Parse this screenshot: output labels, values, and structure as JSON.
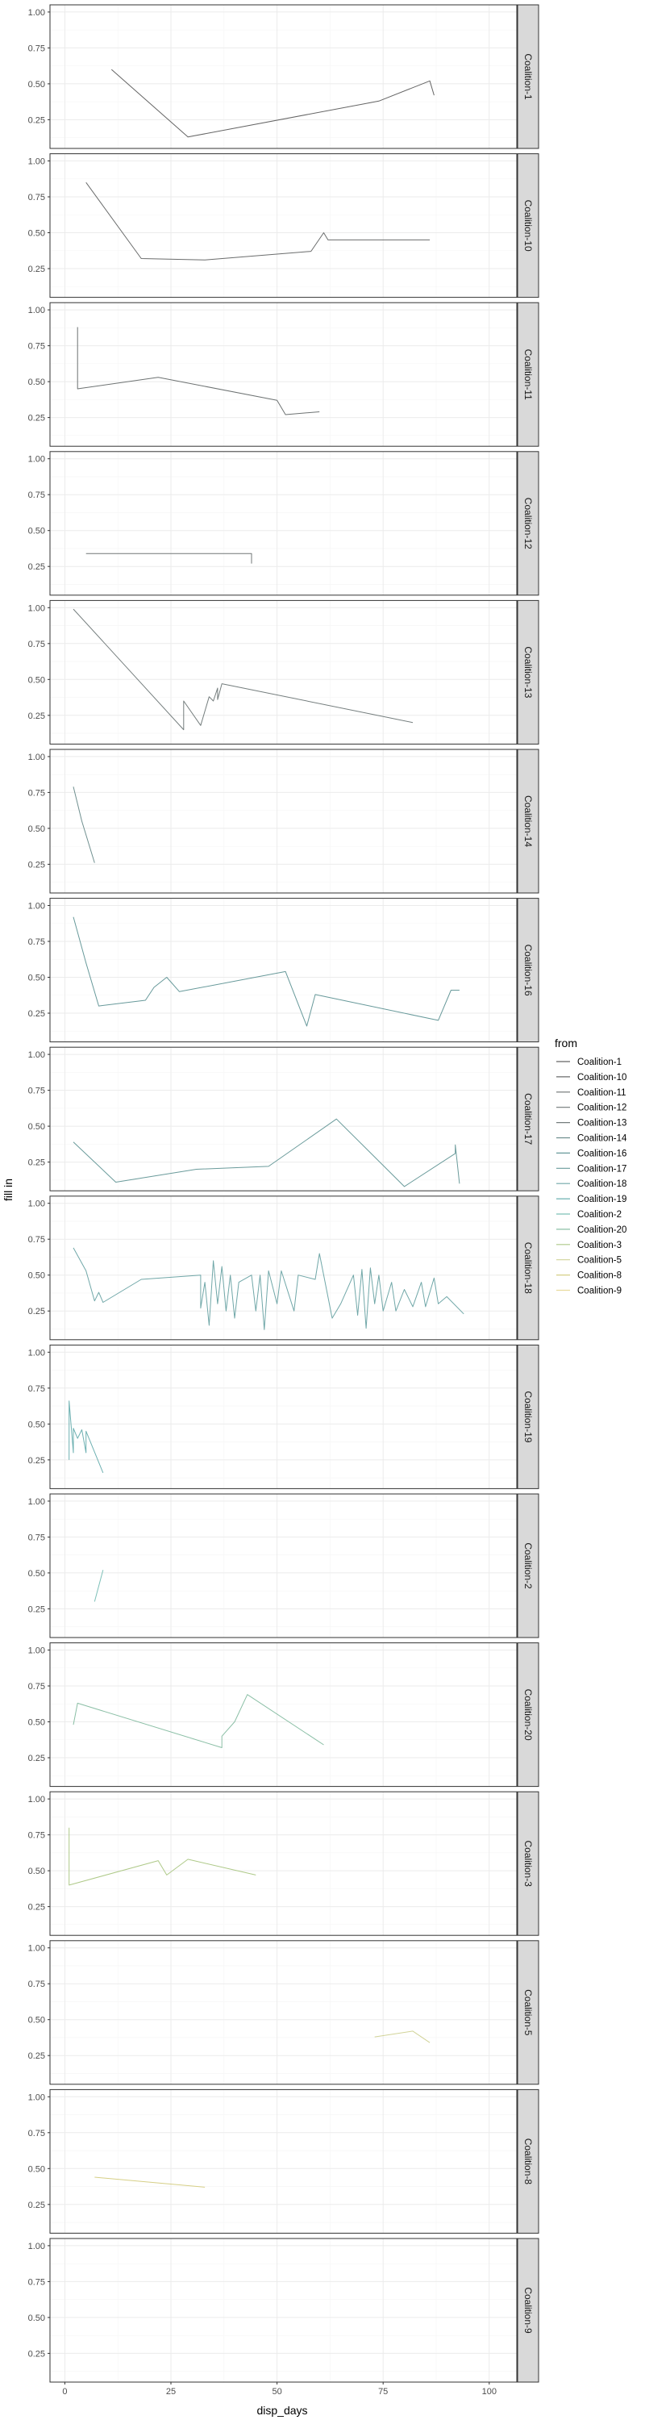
{
  "chart_data": {
    "type": "line",
    "xlabel": "disp_days",
    "ylabel": "fill in",
    "xlim": [
      -3.5,
      106.5
    ],
    "ylim": [
      0.05,
      1.05
    ],
    "x_ticks": [
      0,
      25,
      50,
      75,
      100
    ],
    "y_ticks": [
      0.25,
      0.5,
      0.75,
      1.0
    ],
    "y_tick_labels": [
      "0.25",
      "0.50",
      "0.75",
      "1.00"
    ],
    "facets": "rows by from, strip on right",
    "grid": true,
    "legend_title": "from",
    "legend_position": "right",
    "series": [
      {
        "name": "Coalition-1",
        "color": "#646464",
        "points": [
          [
            11,
            0.6
          ],
          [
            29,
            0.13
          ],
          [
            74,
            0.38
          ],
          [
            86,
            0.52
          ],
          [
            87,
            0.42
          ]
        ]
      },
      {
        "name": "Coalition-10",
        "color": "#6a6c6c",
        "points": [
          [
            5,
            0.85
          ],
          [
            18,
            0.32
          ],
          [
            33,
            0.31
          ],
          [
            58,
            0.37
          ],
          [
            61,
            0.5
          ],
          [
            62,
            0.45
          ],
          [
            64,
            0.45
          ],
          [
            74,
            0.45
          ],
          [
            86,
            0.45
          ]
        ]
      },
      {
        "name": "Coalition-11",
        "color": "#6d7272",
        "points": [
          [
            3,
            0.88
          ],
          [
            3,
            0.45
          ],
          [
            22,
            0.53
          ],
          [
            50,
            0.37
          ],
          [
            52,
            0.27
          ],
          [
            60,
            0.29
          ]
        ]
      },
      {
        "name": "Coalition-12",
        "color": "#707777",
        "points": [
          [
            5,
            0.34
          ],
          [
            44,
            0.34
          ],
          [
            44,
            0.27
          ]
        ]
      },
      {
        "name": "Coalition-13",
        "color": "#747d7d",
        "points": [
          [
            2,
            0.99
          ],
          [
            28,
            0.15
          ],
          [
            28,
            0.35
          ],
          [
            32,
            0.18
          ],
          [
            34,
            0.38
          ],
          [
            35,
            0.35
          ],
          [
            36,
            0.44
          ],
          [
            36,
            0.36
          ],
          [
            37,
            0.47
          ],
          [
            82,
            0.2
          ]
        ]
      },
      {
        "name": "Coalition-14",
        "color": "#6f8f8f",
        "points": [
          [
            2,
            0.79
          ],
          [
            4,
            0.55
          ],
          [
            7,
            0.26
          ]
        ]
      },
      {
        "name": "Coalition-16",
        "color": "#67999a",
        "points": [
          [
            2,
            0.92
          ],
          [
            5,
            0.6
          ],
          [
            8,
            0.3
          ],
          [
            19,
            0.34
          ],
          [
            21,
            0.43
          ],
          [
            24,
            0.5
          ],
          [
            27,
            0.4
          ],
          [
            52,
            0.54
          ],
          [
            57,
            0.16
          ],
          [
            59,
            0.38
          ],
          [
            88,
            0.2
          ],
          [
            91,
            0.41
          ],
          [
            93,
            0.41
          ]
        ]
      },
      {
        "name": "Coalition-17",
        "color": "#6a9b9b",
        "points": [
          [
            2,
            0.39
          ],
          [
            12,
            0.11
          ],
          [
            31,
            0.2
          ],
          [
            48,
            0.22
          ],
          [
            64,
            0.55
          ],
          [
            80,
            0.08
          ],
          [
            92,
            0.31
          ],
          [
            92,
            0.37
          ],
          [
            93,
            0.1
          ]
        ]
      },
      {
        "name": "Coalition-18",
        "color": "#70a7a8",
        "points": [
          [
            2,
            0.69
          ],
          [
            5,
            0.53
          ],
          [
            7,
            0.32
          ],
          [
            8,
            0.38
          ],
          [
            9,
            0.31
          ],
          [
            18,
            0.47
          ],
          [
            32,
            0.5
          ],
          [
            32,
            0.27
          ],
          [
            33,
            0.45
          ],
          [
            34,
            0.15
          ],
          [
            35,
            0.6
          ],
          [
            36,
            0.3
          ],
          [
            37,
            0.56
          ],
          [
            38,
            0.25
          ],
          [
            39,
            0.5
          ],
          [
            40,
            0.2
          ],
          [
            41,
            0.45
          ],
          [
            44,
            0.5
          ],
          [
            45,
            0.25
          ],
          [
            46,
            0.5
          ],
          [
            47,
            0.12
          ],
          [
            48,
            0.53
          ],
          [
            50,
            0.3
          ],
          [
            51,
            0.53
          ],
          [
            54,
            0.25
          ],
          [
            55,
            0.5
          ],
          [
            59,
            0.47
          ],
          [
            60,
            0.65
          ],
          [
            63,
            0.2
          ],
          [
            65,
            0.3
          ],
          [
            68,
            0.5
          ],
          [
            69,
            0.22
          ],
          [
            70,
            0.54
          ],
          [
            71,
            0.13
          ],
          [
            72,
            0.55
          ],
          [
            73,
            0.3
          ],
          [
            74,
            0.5
          ],
          [
            75,
            0.25
          ],
          [
            77,
            0.45
          ],
          [
            78,
            0.25
          ],
          [
            80,
            0.4
          ],
          [
            82,
            0.28
          ],
          [
            84,
            0.45
          ],
          [
            85,
            0.28
          ],
          [
            87,
            0.48
          ],
          [
            88,
            0.3
          ],
          [
            90,
            0.35
          ],
          [
            94,
            0.23
          ]
        ]
      },
      {
        "name": "Coalition-19",
        "color": "#6db0b1",
        "points": [
          [
            1,
            0.25
          ],
          [
            1,
            0.66
          ],
          [
            2,
            0.3
          ],
          [
            2,
            0.47
          ],
          [
            3,
            0.4
          ],
          [
            4,
            0.46
          ],
          [
            5,
            0.3
          ],
          [
            5,
            0.45
          ],
          [
            9,
            0.16
          ]
        ]
      },
      {
        "name": "Coalition-2",
        "color": "#7dc0b8",
        "points": [
          [
            7,
            0.3
          ],
          [
            9,
            0.52
          ]
        ]
      },
      {
        "name": "Coalition-20",
        "color": "#8bbfa6",
        "points": [
          [
            2,
            0.48
          ],
          [
            3,
            0.63
          ],
          [
            37,
            0.32
          ],
          [
            37,
            0.4
          ],
          [
            40,
            0.5
          ],
          [
            43,
            0.69
          ],
          [
            61,
            0.34
          ]
        ]
      },
      {
        "name": "Coalition-3",
        "color": "#aec988",
        "points": [
          [
            1,
            0.8
          ],
          [
            1,
            0.4
          ],
          [
            22,
            0.57
          ],
          [
            24,
            0.47
          ],
          [
            29,
            0.58
          ],
          [
            45,
            0.47
          ]
        ]
      },
      {
        "name": "Coalition-5",
        "color": "#d1d398",
        "points": [
          [
            73,
            0.38
          ],
          [
            82,
            0.42
          ],
          [
            86,
            0.34
          ]
        ]
      },
      {
        "name": "Coalition-8",
        "color": "#d6cf86",
        "points": [
          [
            7,
            0.44
          ],
          [
            33,
            0.37
          ]
        ]
      },
      {
        "name": "Coalition-9",
        "color": "#e8dc9e",
        "points": []
      }
    ]
  }
}
